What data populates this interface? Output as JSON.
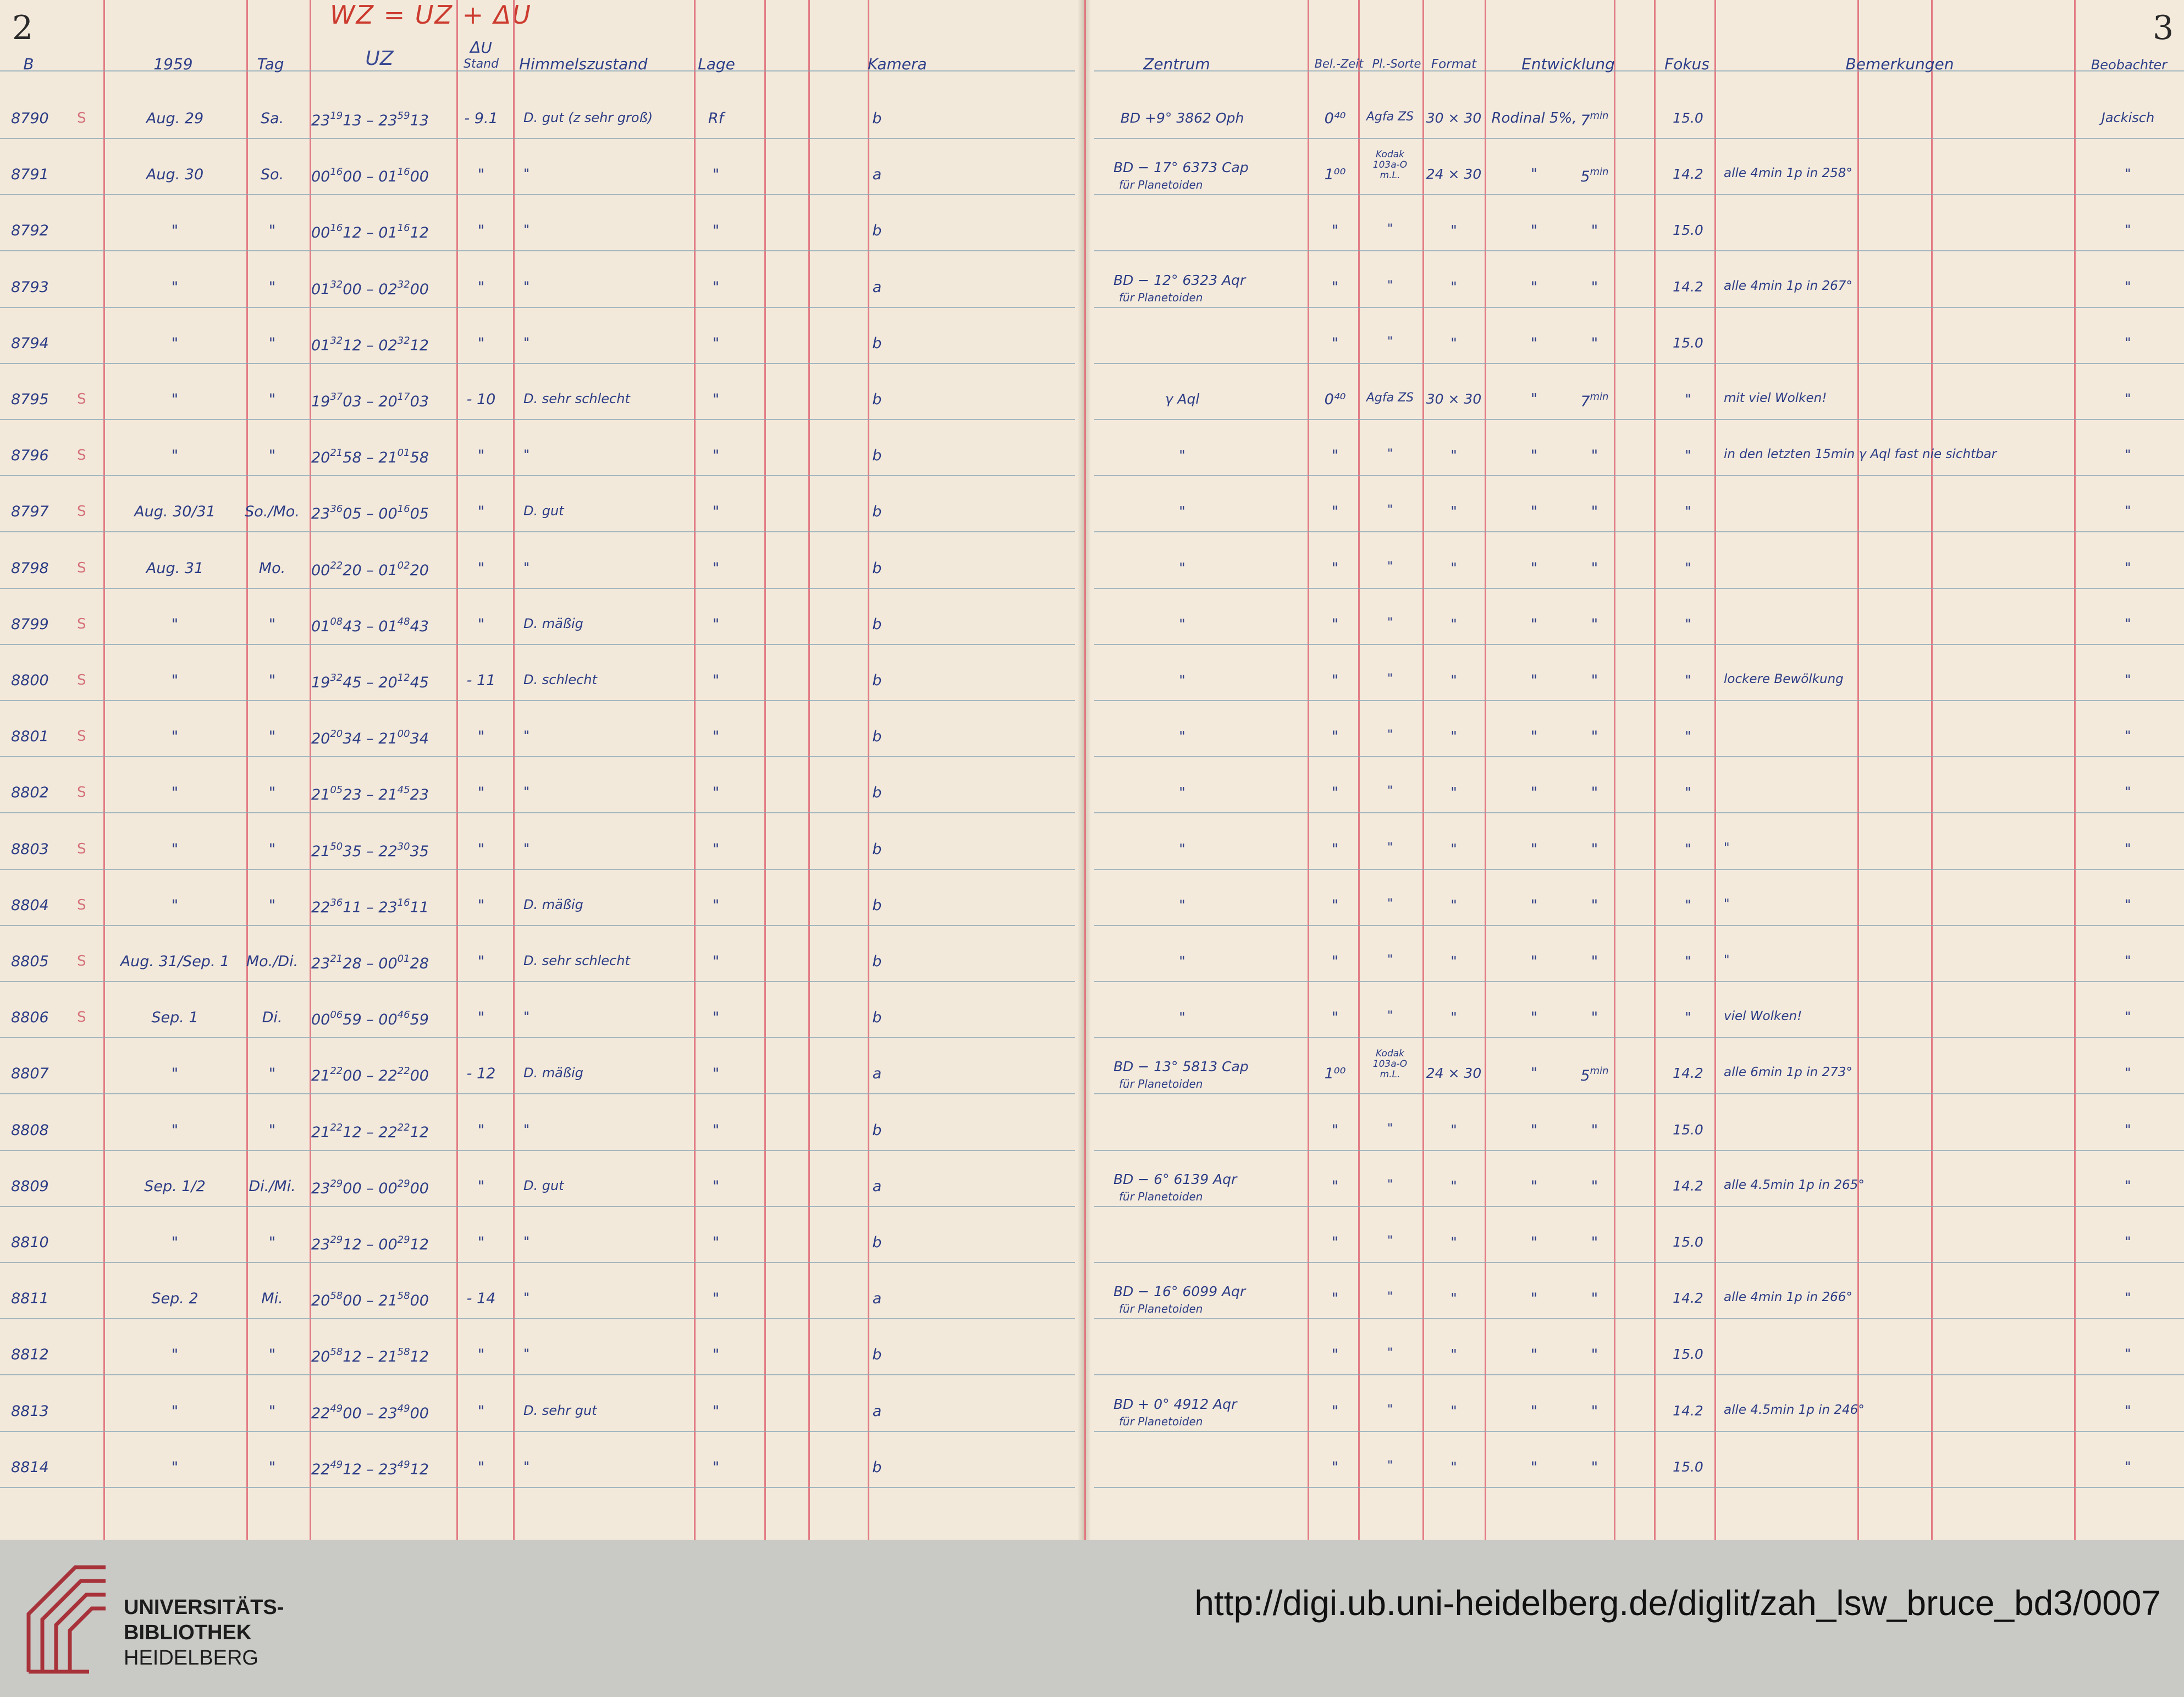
{
  "left_page": {
    "page_number": "2",
    "formula": "WZ = UZ + ΔU",
    "headers": {
      "b": "B",
      "year": "1959",
      "tag": "Tag",
      "uz": "UZ",
      "du_stand_top": "ΔU",
      "du_stand_bottom": "Stand",
      "himmel": "Himmelszustand",
      "lage": "Lage",
      "kamera": "Kamera"
    },
    "rows": [
      {
        "b": "8790",
        "s": "S",
        "date": "Aug. 29",
        "tag": "Sa.",
        "t1": "23",
        "t1s": "19",
        "t1e": "13",
        "t2": "23",
        "t2s": "59",
        "t2e": "13",
        "du": "- 9.1",
        "himmel": "D. gut (z sehr groß)",
        "lage": "Rf",
        "kamera": "b"
      },
      {
        "b": "8791",
        "s": "",
        "date": "Aug. 30",
        "tag": "So.",
        "t1": "00",
        "t1s": "16",
        "t1e": "00",
        "t2": "01",
        "t2s": "16",
        "t2e": "00",
        "du": "\"",
        "himmel": "\"",
        "lage": "\"",
        "kamera": "a"
      },
      {
        "b": "8792",
        "s": "",
        "date": "\"",
        "tag": "\"",
        "t1": "00",
        "t1s": "16",
        "t1e": "12",
        "t2": "01",
        "t2s": "16",
        "t2e": "12",
        "du": "\"",
        "himmel": "\"",
        "lage": "\"",
        "kamera": "b"
      },
      {
        "b": "8793",
        "s": "",
        "date": "\"",
        "tag": "\"",
        "t1": "01",
        "t1s": "32",
        "t1e": "00",
        "t2": "02",
        "t2s": "32",
        "t2e": "00",
        "du": "\"",
        "himmel": "\"",
        "lage": "\"",
        "kamera": "a"
      },
      {
        "b": "8794",
        "s": "",
        "date": "\"",
        "tag": "\"",
        "t1": "01",
        "t1s": "32",
        "t1e": "12",
        "t2": "02",
        "t2s": "32",
        "t2e": "12",
        "du": "\"",
        "himmel": "\"",
        "lage": "\"",
        "kamera": "b"
      },
      {
        "b": "8795",
        "s": "S",
        "date": "\"",
        "tag": "\"",
        "t1": "19",
        "t1s": "37",
        "t1e": "03",
        "t2": "20",
        "t2s": "17",
        "t2e": "03",
        "du": "- 10",
        "himmel": "D. sehr schlecht",
        "lage": "\"",
        "kamera": "b"
      },
      {
        "b": "8796",
        "s": "S",
        "date": "\"",
        "tag": "\"",
        "t1": "20",
        "t1s": "21",
        "t1e": "58",
        "t2": "21",
        "t2s": "01",
        "t2e": "58",
        "du": "\"",
        "himmel": "\"",
        "lage": "\"",
        "kamera": "b"
      },
      {
        "b": "8797",
        "s": "S",
        "date": "Aug. 30/31",
        "tag": "So./Mo.",
        "t1": "23",
        "t1s": "36",
        "t1e": "05",
        "t2": "00",
        "t2s": "16",
        "t2e": "05",
        "du": "\"",
        "himmel": "D. gut",
        "lage": "\"",
        "kamera": "b"
      },
      {
        "b": "8798",
        "s": "S",
        "date": "Aug. 31",
        "tag": "Mo.",
        "t1": "00",
        "t1s": "22",
        "t1e": "20",
        "t2": "01",
        "t2s": "02",
        "t2e": "20",
        "du": "\"",
        "himmel": "\"",
        "lage": "\"",
        "kamera": "b"
      },
      {
        "b": "8799",
        "s": "S",
        "date": "\"",
        "tag": "\"",
        "t1": "01",
        "t1s": "08",
        "t1e": "43",
        "t2": "01",
        "t2s": "48",
        "t2e": "43",
        "du": "\"",
        "himmel": "D. mäßig",
        "lage": "\"",
        "kamera": "b"
      },
      {
        "b": "8800",
        "s": "S",
        "date": "\"",
        "tag": "\"",
        "t1": "19",
        "t1s": "32",
        "t1e": "45",
        "t2": "20",
        "t2s": "12",
        "t2e": "45",
        "du": "- 11",
        "himmel": "D. schlecht",
        "lage": "\"",
        "kamera": "b"
      },
      {
        "b": "8801",
        "s": "S",
        "date": "\"",
        "tag": "\"",
        "t1": "20",
        "t1s": "20",
        "t1e": "34",
        "t2": "21",
        "t2s": "00",
        "t2e": "34",
        "du": "\"",
        "himmel": "\"",
        "lage": "\"",
        "kamera": "b"
      },
      {
        "b": "8802",
        "s": "S",
        "date": "\"",
        "tag": "\"",
        "t1": "21",
        "t1s": "05",
        "t1e": "23",
        "t2": "21",
        "t2s": "45",
        "t2e": "23",
        "du": "\"",
        "himmel": "\"",
        "lage": "\"",
        "kamera": "b"
      },
      {
        "b": "8803",
        "s": "S",
        "date": "\"",
        "tag": "\"",
        "t1": "21",
        "t1s": "50",
        "t1e": "35",
        "t2": "22",
        "t2s": "30",
        "t2e": "35",
        "du": "\"",
        "himmel": "\"",
        "lage": "\"",
        "kamera": "b"
      },
      {
        "b": "8804",
        "s": "S",
        "date": "\"",
        "tag": "\"",
        "t1": "22",
        "t1s": "36",
        "t1e": "11",
        "t2": "23",
        "t2s": "16",
        "t2e": "11",
        "du": "\"",
        "himmel": "D. mäßig",
        "lage": "\"",
        "kamera": "b"
      },
      {
        "b": "8805",
        "s": "S",
        "date": "Aug. 31/Sep. 1",
        "tag": "Mo./Di.",
        "t1": "23",
        "t1s": "21",
        "t1e": "28",
        "t2": "00",
        "t2s": "01",
        "t2e": "28",
        "du": "\"",
        "himmel": "D. sehr schlecht",
        "lage": "\"",
        "kamera": "b"
      },
      {
        "b": "8806",
        "s": "S",
        "date": "Sep. 1",
        "tag": "Di.",
        "t1": "00",
        "t1s": "06",
        "t1e": "59",
        "t2": "00",
        "t2s": "46",
        "t2e": "59",
        "du": "\"",
        "himmel": "\"",
        "lage": "\"",
        "kamera": "b"
      },
      {
        "b": "8807",
        "s": "",
        "date": "\"",
        "tag": "\"",
        "t1": "21",
        "t1s": "22",
        "t1e": "00",
        "t2": "22",
        "t2s": "22",
        "t2e": "00",
        "du": "- 12",
        "himmel": "D. mäßig",
        "lage": "\"",
        "kamera": "a"
      },
      {
        "b": "8808",
        "s": "",
        "date": "\"",
        "tag": "\"",
        "t1": "21",
        "t1s": "22",
        "t1e": "12",
        "t2": "22",
        "t2s": "22",
        "t2e": "12",
        "du": "\"",
        "himmel": "\"",
        "lage": "\"",
        "kamera": "b"
      },
      {
        "b": "8809",
        "s": "",
        "date": "Sep. 1/2",
        "tag": "Di./Mi.",
        "t1": "23",
        "t1s": "29",
        "t1e": "00",
        "t2": "00",
        "t2s": "29",
        "t2e": "00",
        "du": "\"",
        "himmel": "D. gut",
        "lage": "\"",
        "kamera": "a"
      },
      {
        "b": "8810",
        "s": "",
        "date": "\"",
        "tag": "\"",
        "t1": "23",
        "t1s": "29",
        "t1e": "12",
        "t2": "00",
        "t2s": "29",
        "t2e": "12",
        "du": "\"",
        "himmel": "\"",
        "lage": "\"",
        "kamera": "b"
      },
      {
        "b": "8811",
        "s": "",
        "date": "Sep. 2",
        "tag": "Mi.",
        "t1": "20",
        "t1s": "58",
        "t1e": "00",
        "t2": "21",
        "t2s": "58",
        "t2e": "00",
        "du": "- 14",
        "himmel": "\"",
        "lage": "\"",
        "kamera": "a"
      },
      {
        "b": "8812",
        "s": "",
        "date": "\"",
        "tag": "\"",
        "t1": "20",
        "t1s": "58",
        "t1e": "12",
        "t2": "21",
        "t2s": "58",
        "t2e": "12",
        "du": "\"",
        "himmel": "\"",
        "lage": "\"",
        "kamera": "b"
      },
      {
        "b": "8813",
        "s": "",
        "date": "\"",
        "tag": "\"",
        "t1": "22",
        "t1s": "49",
        "t1e": "00",
        "t2": "23",
        "t2s": "49",
        "t2e": "00",
        "du": "\"",
        "himmel": "D. sehr gut",
        "lage": "\"",
        "kamera": "a"
      },
      {
        "b": "8814",
        "s": "",
        "date": "\"",
        "tag": "\"",
        "t1": "22",
        "t1s": "49",
        "t1e": "12",
        "t2": "23",
        "t2s": "49",
        "t2e": "12",
        "du": "\"",
        "himmel": "\"",
        "lage": "\"",
        "kamera": "b"
      }
    ]
  },
  "right_page": {
    "page_number": "3",
    "headers": {
      "zentrum": "Zentrum",
      "bel_zeit": "Bel.-Zeit",
      "pl_sorte": "Pl.-Sorte",
      "format": "Format",
      "entwicklung": "Entwicklung",
      "fokus": "Fokus",
      "bemerkungen": "Bemerkungen",
      "beobachter": "Beobachter"
    },
    "rows": [
      {
        "zentrum": "BD +9° 3862 Oph",
        "zentrum2": "",
        "bel": "0⁴⁰",
        "sorte": "Agfa ZS",
        "sorte_small": "",
        "format": "30 × 30",
        "entw": "Rodinal 5%,",
        "entw_min": "7",
        "fokus": "15.0",
        "bem": "",
        "beob": "Jackisch"
      },
      {
        "zentrum": "BD − 17° 6373 Cap",
        "zentrum2": "für Planetoiden",
        "bel": "1⁰⁰",
        "sorte": "",
        "sorte_small": "Kodak 103a-O m.L.",
        "format": "24 × 30",
        "entw": "\"",
        "entw_min": "5",
        "fokus": "14.2",
        "bem": "alle 4min 1p in 258°",
        "beob": "\""
      },
      {
        "zentrum": "",
        "zentrum2": "",
        "bel": "\"",
        "sorte": "\"",
        "sorte_small": "",
        "format": "\"",
        "entw": "\"",
        "entw_min": "\"",
        "fokus": "15.0",
        "bem": "",
        "beob": "\""
      },
      {
        "zentrum": "BD − 12° 6323 Aqr",
        "zentrum2": "für Planetoiden",
        "bel": "\"",
        "sorte": "\"",
        "sorte_small": "",
        "format": "\"",
        "entw": "\"",
        "entw_min": "\"",
        "fokus": "14.2",
        "bem": "alle 4min 1p in 267°",
        "beob": "\""
      },
      {
        "zentrum": "",
        "zentrum2": "",
        "bel": "\"",
        "sorte": "\"",
        "sorte_small": "",
        "format": "\"",
        "entw": "\"",
        "entw_min": "\"",
        "fokus": "15.0",
        "bem": "",
        "beob": "\""
      },
      {
        "zentrum": "γ Aql",
        "zentrum2": "",
        "bel": "0⁴⁰",
        "sorte": "Agfa ZS",
        "sorte_small": "",
        "format": "30 × 30",
        "entw": "\"",
        "entw_min": "7",
        "fokus": "\"",
        "bem": "mit viel Wolken!",
        "beob": "\""
      },
      {
        "zentrum": "\"",
        "zentrum2": "",
        "bel": "\"",
        "sorte": "\"",
        "sorte_small": "",
        "format": "\"",
        "entw": "\"",
        "entw_min": "\"",
        "fokus": "\"",
        "bem": "in den letzten 15min γ Aql fast nie sichtbar",
        "beob": "\""
      },
      {
        "zentrum": "\"",
        "zentrum2": "",
        "bel": "\"",
        "sorte": "\"",
        "sorte_small": "",
        "format": "\"",
        "entw": "\"",
        "entw_min": "\"",
        "fokus": "\"",
        "bem": "",
        "beob": "\""
      },
      {
        "zentrum": "\"",
        "zentrum2": "",
        "bel": "\"",
        "sorte": "\"",
        "sorte_small": "",
        "format": "\"",
        "entw": "\"",
        "entw_min": "\"",
        "fokus": "\"",
        "bem": "",
        "beob": "\""
      },
      {
        "zentrum": "\"",
        "zentrum2": "",
        "bel": "\"",
        "sorte": "\"",
        "sorte_small": "",
        "format": "\"",
        "entw": "\"",
        "entw_min": "\"",
        "fokus": "\"",
        "bem": "",
        "beob": "\""
      },
      {
        "zentrum": "\"",
        "zentrum2": "",
        "bel": "\"",
        "sorte": "\"",
        "sorte_small": "",
        "format": "\"",
        "entw": "\"",
        "entw_min": "\"",
        "fokus": "\"",
        "bem": "lockere Bewölkung",
        "beob": "\""
      },
      {
        "zentrum": "\"",
        "zentrum2": "",
        "bel": "\"",
        "sorte": "\"",
        "sorte_small": "",
        "format": "\"",
        "entw": "\"",
        "entw_min": "\"",
        "fokus": "\"",
        "bem": "",
        "beob": "\""
      },
      {
        "zentrum": "\"",
        "zentrum2": "",
        "bel": "\"",
        "sorte": "\"",
        "sorte_small": "",
        "format": "\"",
        "entw": "\"",
        "entw_min": "\"",
        "fokus": "\"",
        "bem": "",
        "beob": "\""
      },
      {
        "zentrum": "\"",
        "zentrum2": "",
        "bel": "\"",
        "sorte": "\"",
        "sorte_small": "",
        "format": "\"",
        "entw": "\"",
        "entw_min": "\"",
        "fokus": "\"",
        "bem": "\"",
        "beob": "\""
      },
      {
        "zentrum": "\"",
        "zentrum2": "",
        "bel": "\"",
        "sorte": "\"",
        "sorte_small": "",
        "format": "\"",
        "entw": "\"",
        "entw_min": "\"",
        "fokus": "\"",
        "bem": "\"",
        "beob": "\""
      },
      {
        "zentrum": "\"",
        "zentrum2": "",
        "bel": "\"",
        "sorte": "\"",
        "sorte_small": "",
        "format": "\"",
        "entw": "\"",
        "entw_min": "\"",
        "fokus": "\"",
        "bem": "\"",
        "beob": "\""
      },
      {
        "zentrum": "\"",
        "zentrum2": "",
        "bel": "\"",
        "sorte": "\"",
        "sorte_small": "",
        "format": "\"",
        "entw": "\"",
        "entw_min": "\"",
        "fokus": "\"",
        "bem": "viel Wolken!",
        "beob": "\""
      },
      {
        "zentrum": "BD − 13° 5813 Cap",
        "zentrum2": "für Planetoiden",
        "bel": "1⁰⁰",
        "sorte": "",
        "sorte_small": "Kodak 103a-O m.L.",
        "format": "24 × 30",
        "entw": "\"",
        "entw_min": "5",
        "fokus": "14.2",
        "bem": "alle 6min 1p in 273°",
        "beob": "\""
      },
      {
        "zentrum": "",
        "zentrum2": "",
        "bel": "\"",
        "sorte": "\"",
        "sorte_small": "",
        "format": "\"",
        "entw": "\"",
        "entw_min": "\"",
        "fokus": "15.0",
        "bem": "",
        "beob": "\""
      },
      {
        "zentrum": "BD − 6° 6139 Aqr",
        "zentrum2": "für Planetoiden",
        "bel": "\"",
        "sorte": "\"",
        "sorte_small": "",
        "format": "\"",
        "entw": "\"",
        "entw_min": "\"",
        "fokus": "14.2",
        "bem": "alle 4.5min 1p in 265°",
        "beob": "\""
      },
      {
        "zentrum": "",
        "zentrum2": "",
        "bel": "\"",
        "sorte": "\"",
        "sorte_small": "",
        "format": "\"",
        "entw": "\"",
        "entw_min": "\"",
        "fokus": "15.0",
        "bem": "",
        "beob": "\""
      },
      {
        "zentrum": "BD − 16° 6099 Aqr",
        "zentrum2": "für Planetoiden",
        "bel": "\"",
        "sorte": "\"",
        "sorte_small": "",
        "format": "\"",
        "entw": "\"",
        "entw_min": "\"",
        "fokus": "14.2",
        "bem": "alle 4min 1p in 266°",
        "beob": "\""
      },
      {
        "zentrum": "",
        "zentrum2": "",
        "bel": "\"",
        "sorte": "\"",
        "sorte_small": "",
        "format": "\"",
        "entw": "\"",
        "entw_min": "\"",
        "fokus": "15.0",
        "bem": "",
        "beob": "\""
      },
      {
        "zentrum": "BD + 0° 4912 Aqr",
        "zentrum2": "für Planetoiden",
        "bel": "\"",
        "sorte": "\"",
        "sorte_small": "",
        "format": "\"",
        "entw": "\"",
        "entw_min": "\"",
        "fokus": "14.2",
        "bem": "alle 4.5min 1p in 246°",
        "beob": "\""
      },
      {
        "zentrum": "",
        "zentrum2": "",
        "bel": "\"",
        "sorte": "\"",
        "sorte_small": "",
        "format": "\"",
        "entw": "\"",
        "entw_min": "\"",
        "fokus": "15.0",
        "bem": "",
        "beob": "\""
      }
    ]
  },
  "footer": {
    "logo_line1": "UNIVERSITÄTS-",
    "logo_line2": "BIBLIOTHEK",
    "logo_line3": "HEIDELBERG",
    "url": "http://digi.ub.uni-heidelberg.de/diglit/zah_lsw_bruce_bd3/0007"
  },
  "colors": {
    "ink": "#2c3c86",
    "red_ink": "#cc3b2f",
    "margin_rule": "#e0707a",
    "ledger_line": "#8aa6b6",
    "paper": "#f2e9da",
    "footer_bg": "#c9c9c6"
  }
}
